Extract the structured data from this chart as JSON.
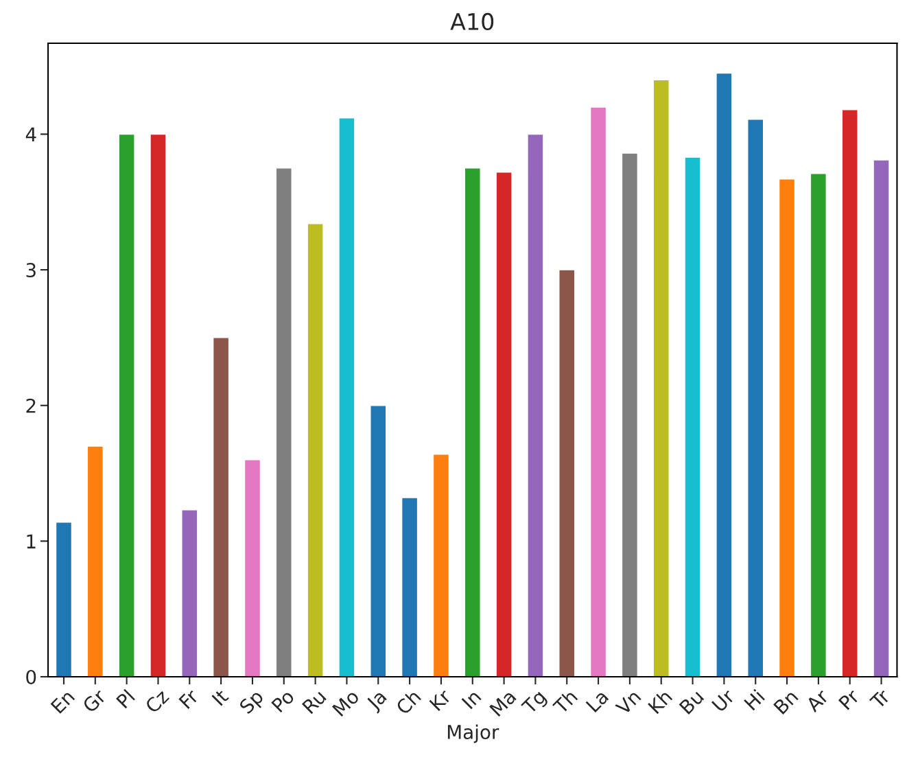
{
  "chart_data": {
    "type": "bar",
    "title": "A10",
    "xlabel": "Major",
    "categories": [
      "En",
      "Gr",
      "Pl",
      "Cz",
      "Fr",
      "It",
      "Sp",
      "Po",
      "Ru",
      "Mo",
      "Ja",
      "Ch",
      "Kr",
      "In",
      "Ma",
      "Tg",
      "Th",
      "La",
      "Vn",
      "Kh",
      "Bu",
      "Ur",
      "Hi",
      "Bn",
      "Ar",
      "Pr",
      "Tr"
    ],
    "values": [
      1.14,
      1.7,
      4.0,
      4.0,
      1.23,
      2.5,
      1.6,
      3.75,
      3.34,
      4.12,
      2.0,
      1.32,
      1.64,
      3.75,
      3.72,
      4.0,
      3.0,
      4.2,
      3.86,
      4.4,
      3.83,
      4.45,
      4.11,
      3.67,
      3.71,
      4.18,
      3.81
    ],
    "colors": [
      "#1f77b4",
      "#ff7f0e",
      "#2ca02c",
      "#d62728",
      "#9467bd",
      "#8c564b",
      "#e377c2",
      "#7f7f7f",
      "#bcbd22",
      "#17becf",
      "#1f77b4",
      "#1f77b4",
      "#ff7f0e",
      "#2ca02c",
      "#d62728",
      "#9467bd",
      "#8c564b",
      "#e377c2",
      "#7f7f7f",
      "#bcbd22",
      "#17becf",
      "#1f77b4",
      "#1f77b4",
      "#ff7f0e",
      "#2ca02c",
      "#d62728",
      "#9467bd"
    ],
    "ylim": [
      0,
      4.67
    ],
    "yticks": [
      0,
      1,
      2,
      3,
      4
    ],
    "grid": false,
    "legend": false
  }
}
